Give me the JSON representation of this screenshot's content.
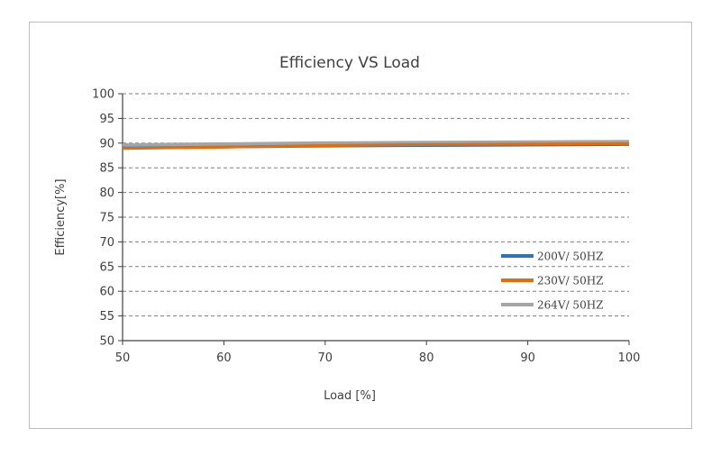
{
  "chart_data": {
    "type": "line",
    "title": "Efficiency VS Load",
    "xlabel": "Load [%]",
    "ylabel": "Efficiency[%]",
    "xlim": [
      50,
      100
    ],
    "ylim": [
      50,
      100
    ],
    "x_ticks": [
      "50",
      "60",
      "70",
      "80",
      "90",
      "100"
    ],
    "y_ticks": [
      "50",
      "55",
      "60",
      "65",
      "70",
      "75",
      "80",
      "85",
      "90",
      "95",
      "100"
    ],
    "x": [
      50,
      60,
      70,
      80,
      90,
      100
    ],
    "series": [
      {
        "name": "200V/ 50HZ",
        "color": "#2e75b6",
        "values": [
          89.0,
          89.2,
          89.4,
          89.5,
          89.6,
          89.7
        ]
      },
      {
        "name": "230V/ 50HZ",
        "color": "#e46c0a",
        "values": [
          88.9,
          89.2,
          89.5,
          89.7,
          89.8,
          89.9
        ]
      },
      {
        "name": "264V/ 50HZ",
        "color": "#a5a5a5",
        "values": [
          89.6,
          89.8,
          90.0,
          90.1,
          90.2,
          90.3
        ]
      }
    ],
    "grid": "horizontal dashed",
    "legend_position": "right"
  }
}
